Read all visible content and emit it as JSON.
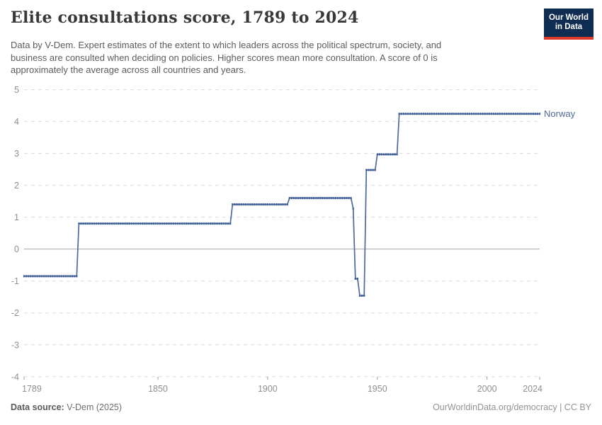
{
  "header": {
    "title": "Elite consultations score, 1789 to 2024",
    "subtitle_lines": [
      "Data by V-Dem. Expert estimates of the extent to which leaders across the political spectrum, society, and",
      "business are consulted when deciding on policies. Higher scores mean more consultation. A score of 0 is",
      "approximately the average across all countries and years."
    ],
    "logo": {
      "line1": "Our World",
      "line2": "in Data",
      "bg_color": "#0f2d52",
      "stripe_color": "#dc3a2c"
    }
  },
  "footer": {
    "source_label": "Data source:",
    "source_value": "V-Dem (2025)",
    "right_text": "OurWorldinData.org/democracy | CC BY"
  },
  "colors": {
    "grid": "#dcdcdc",
    "zero_line": "#a3a3a3",
    "axis_text": "#8f8f8f",
    "tick_mark": "#9e9e9e",
    "series_blue": "#4c6a9c",
    "marker_blue": "#3f5e97"
  },
  "chart_data": {
    "type": "line",
    "title": "Elite consultations score, 1789 to 2024",
    "entity_label": "Norway",
    "x": {
      "min": 1789,
      "max": 2024,
      "ticks": [
        1789,
        1850,
        1900,
        1950,
        2000,
        2024
      ]
    },
    "y": {
      "min": -4,
      "max": 5,
      "ticks": [
        5,
        4,
        3,
        2,
        1,
        0,
        -1,
        -2,
        -3,
        -4
      ],
      "zero_line_solid": true,
      "grid": "dashed"
    },
    "point_interval_years": 1,
    "legend_position": "end-of-line",
    "series": [
      {
        "name": "Norway",
        "color": "#4c6a9c",
        "marker_color": "#3f5e97",
        "steps": [
          {
            "from": 1789,
            "to": 1813,
            "value": -0.85
          },
          {
            "from": 1814,
            "to": 1883,
            "value": 0.8
          },
          {
            "from": 1884,
            "to": 1909,
            "value": 1.4
          },
          {
            "from": 1910,
            "to": 1938,
            "value": 1.6
          },
          {
            "from": 1939,
            "to": 1939,
            "value": 1.27
          },
          {
            "from": 1940,
            "to": 1941,
            "value": -0.93
          },
          {
            "from": 1942,
            "to": 1944,
            "value": -1.46
          },
          {
            "from": 1945,
            "to": 1949,
            "value": 2.48
          },
          {
            "from": 1950,
            "to": 1959,
            "value": 2.97
          },
          {
            "from": 1960,
            "to": 2024,
            "value": 4.24
          }
        ]
      }
    ]
  }
}
